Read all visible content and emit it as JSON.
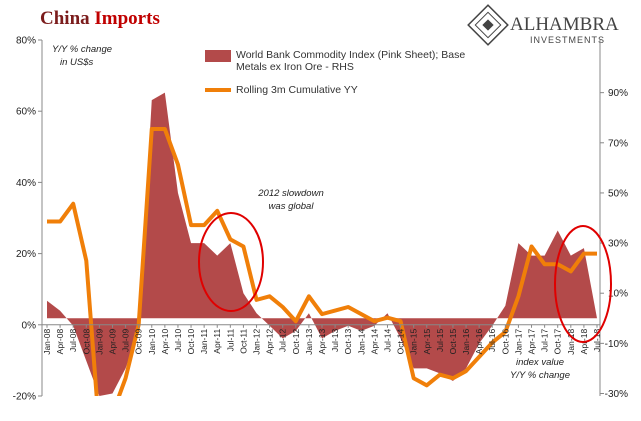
{
  "chart_data": {
    "type": "area_line",
    "title": [
      "China",
      "Imports"
    ],
    "brand": [
      "ALHAMBRA",
      "INVESTMENTS"
    ],
    "y_axis_label": [
      "Y/Y % change",
      "in US$s"
    ],
    "y2_axis_label": [
      "index value",
      "Y/Y % change"
    ],
    "annotation": [
      "2012 slowdown",
      "was global"
    ],
    "categories": [
      "Jan-08",
      "Apr-08",
      "Jul-08",
      "Oct-08",
      "Jan-09",
      "Apr-09",
      "Jul-09",
      "Oct-09",
      "Jan-10",
      "Apr-10",
      "Jul-10",
      "Oct-10",
      "Jan-11",
      "Apr-11",
      "Jul-11",
      "Oct-11",
      "Jan-12",
      "Apr-12",
      "Jul-12",
      "Oct-12",
      "Jan-13",
      "Apr-13",
      "Jul-13",
      "Oct-13",
      "Jan-14",
      "Apr-14",
      "Jul-14",
      "Oct-14",
      "Jan-15",
      "Apr-15",
      "Jul-15",
      "Oct-15",
      "Jan-16",
      "Apr-16",
      "Jul-16",
      "Oct-16",
      "Jan-17",
      "Apr-17",
      "Jul-17",
      "Oct-17",
      "Jan-18",
      "Apr-18",
      "Jul-18"
    ],
    "series": [
      {
        "name": "World Bank Commodity Index (Pink Sheet); Base Metals ex Iron Ore - RHS",
        "color": "#b34a4a",
        "axis": "y2",
        "kind": "area",
        "values": [
          7,
          3,
          -3,
          -17,
          -31,
          -30,
          -20,
          -5,
          87,
          90,
          50,
          30,
          30,
          25,
          30,
          10,
          2,
          -3,
          -8,
          -5,
          2,
          -8,
          -5,
          -3,
          -5,
          -3,
          2,
          -8,
          -20,
          -20,
          -22,
          -25,
          -20,
          -10,
          -3,
          5,
          30,
          25,
          25,
          35,
          25,
          28,
          0
        ]
      },
      {
        "name": "Rolling 3m Cumulative YY",
        "color": "#f07f09",
        "kind": "line",
        "values": [
          29,
          29,
          34,
          18,
          -30,
          -25,
          -15,
          0,
          55,
          55,
          45,
          28,
          28,
          32,
          24,
          22,
          7,
          8,
          5,
          1,
          8,
          3,
          4,
          5,
          3,
          1,
          2,
          1,
          -15,
          -17,
          -14,
          -15,
          -13,
          -9,
          -5,
          -2,
          8,
          22,
          17,
          17,
          15,
          20,
          20
        ]
      }
    ],
    "ylim": [
      -20,
      80
    ],
    "yticks": [
      {
        "value": -20,
        "label": "-20%"
      },
      {
        "value": 0,
        "label": "0%"
      },
      {
        "value": 20,
        "label": "20%"
      },
      {
        "value": 40,
        "label": "40%"
      },
      {
        "value": 60,
        "label": "60%"
      },
      {
        "value": 80,
        "label": "80%"
      }
    ],
    "y2lim": [
      -31,
      111
    ],
    "y2ticks": [
      {
        "value": -30,
        "label": "-30%"
      },
      {
        "value": -10,
        "label": "-10%"
      },
      {
        "value": 10,
        "label": "10%"
      },
      {
        "value": 30,
        "label": "30%"
      },
      {
        "value": 50,
        "label": "50%"
      },
      {
        "value": 70,
        "label": "70%"
      },
      {
        "value": 90,
        "label": "90%"
      }
    ]
  }
}
